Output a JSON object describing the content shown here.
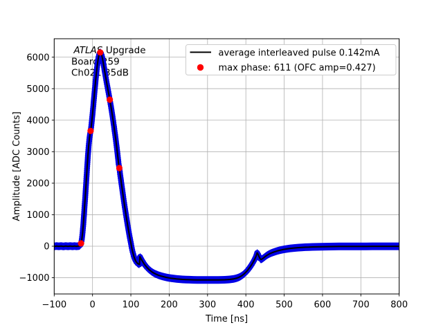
{
  "figure": {
    "background": "#ffffff"
  },
  "annotation": {
    "line1_italic": "ATLAS",
    "line1_rest": "Upgrade",
    "line2": "Board 259",
    "line3": "Ch021 35dB"
  },
  "legend": {
    "entries": [
      {
        "type": "line",
        "color": "#000000",
        "label": "average interleaved pulse 0.142mA"
      },
      {
        "type": "dot",
        "color": "#ff0000",
        "label": "max phase: 611 (OFC amp=0.427)"
      }
    ],
    "border_color": "#cccccc",
    "background": "#ffffff",
    "position": "upper right"
  },
  "axes": {
    "xlabel": "Time [ns]",
    "ylabel": "Amplitude [ADC Counts]",
    "x_tick_labels": [
      "−100",
      "0",
      "100",
      "200",
      "300",
      "400",
      "500",
      "600",
      "700",
      "800"
    ],
    "y_tick_labels": [
      "−1000",
      "0",
      "1000",
      "2000",
      "3000",
      "4000",
      "5000",
      "6000"
    ],
    "grid_color": "#b0b0b0",
    "spine_color": "#000000"
  },
  "chart_data": {
    "type": "line",
    "title": "",
    "xlabel": "Time [ns]",
    "ylabel": "Amplitude [ADC Counts]",
    "xlim": [
      -100,
      800
    ],
    "ylim": [
      -1515,
      6585
    ],
    "x_ticks": [
      -100,
      0,
      100,
      200,
      300,
      400,
      500,
      600,
      700,
      800
    ],
    "y_ticks": [
      -1000,
      0,
      1000,
      2000,
      3000,
      4000,
      5000,
      6000
    ],
    "grid": true,
    "legend_position": "upper right",
    "series": [
      {
        "name": "average interleaved pulse 0.142mA",
        "style": "band+line",
        "band_color": "#0000e6",
        "line_color": "#000000",
        "points": [
          [
            -100,
            -4
          ],
          [
            -94,
            3
          ],
          [
            -88,
            -3
          ],
          [
            -82,
            4
          ],
          [
            -76,
            -4
          ],
          [
            -70,
            3
          ],
          [
            -64,
            -3
          ],
          [
            -58,
            4
          ],
          [
            -52,
            -3
          ],
          [
            -47,
            3
          ],
          [
            -42,
            -3
          ],
          [
            -38,
            2
          ],
          [
            -35,
            4
          ],
          [
            -33,
            15
          ],
          [
            -31,
            55
          ],
          [
            -30,
            90
          ],
          [
            -29,
            140
          ],
          [
            -28,
            210
          ],
          [
            -27,
            310
          ],
          [
            -26,
            420
          ],
          [
            -25,
            555
          ],
          [
            -24,
            700
          ],
          [
            -23,
            860
          ],
          [
            -22,
            1030
          ],
          [
            -21,
            1210
          ],
          [
            -20,
            1390
          ],
          [
            -19,
            1575
          ],
          [
            -18,
            1760
          ],
          [
            -17,
            1950
          ],
          [
            -16,
            2140
          ],
          [
            -15,
            2330
          ],
          [
            -14,
            2520
          ],
          [
            -13,
            2700
          ],
          [
            -12,
            2880
          ],
          [
            -11,
            3040
          ],
          [
            -10,
            3180
          ],
          [
            -9,
            3310
          ],
          [
            -8,
            3420
          ],
          [
            -7,
            3515
          ],
          [
            -6,
            3600
          ],
          [
            -5,
            3660
          ],
          [
            -4,
            3740
          ],
          [
            -3,
            3840
          ],
          [
            -2,
            3950
          ],
          [
            -1,
            4070
          ],
          [
            0,
            4190
          ],
          [
            1,
            4320
          ],
          [
            2,
            4450
          ],
          [
            3,
            4585
          ],
          [
            4,
            4720
          ],
          [
            5,
            4855
          ],
          [
            6,
            4990
          ],
          [
            7,
            5120
          ],
          [
            8,
            5250
          ],
          [
            9,
            5375
          ],
          [
            10,
            5490
          ],
          [
            11,
            5600
          ],
          [
            12,
            5700
          ],
          [
            13,
            5795
          ],
          [
            14,
            5880
          ],
          [
            15,
            5955
          ],
          [
            16,
            6020
          ],
          [
            17,
            6070
          ],
          [
            18,
            6110
          ],
          [
            19,
            6140
          ],
          [
            20,
            6150
          ],
          [
            21,
            6145
          ],
          [
            22,
            6125
          ],
          [
            23,
            6095
          ],
          [
            24,
            6055
          ],
          [
            25,
            6005
          ],
          [
            26,
            5950
          ],
          [
            27,
            5890
          ],
          [
            28,
            5820
          ],
          [
            29,
            5750
          ],
          [
            30,
            5680
          ],
          [
            31,
            5605
          ],
          [
            32,
            5530
          ],
          [
            33,
            5460
          ],
          [
            34,
            5390
          ],
          [
            35,
            5320
          ],
          [
            36,
            5250
          ],
          [
            37,
            5180
          ],
          [
            38,
            5115
          ],
          [
            39,
            5050
          ],
          [
            40,
            4985
          ],
          [
            41,
            4920
          ],
          [
            42,
            4855
          ],
          [
            43,
            4790
          ],
          [
            44,
            4720
          ],
          [
            45,
            4650
          ],
          [
            46,
            4580
          ],
          [
            47,
            4510
          ],
          [
            48,
            4440
          ],
          [
            49,
            4365
          ],
          [
            50,
            4290
          ],
          [
            51,
            4210
          ],
          [
            52,
            4130
          ],
          [
            53,
            4050
          ],
          [
            54,
            3970
          ],
          [
            55,
            3885
          ],
          [
            56,
            3800
          ],
          [
            57,
            3710
          ],
          [
            58,
            3620
          ],
          [
            59,
            3530
          ],
          [
            60,
            3440
          ],
          [
            61,
            3345
          ],
          [
            62,
            3250
          ],
          [
            63,
            3150
          ],
          [
            64,
            3050
          ],
          [
            65,
            2945
          ],
          [
            66,
            2840
          ],
          [
            67,
            2730
          ],
          [
            68,
            2620
          ],
          [
            69,
            2550
          ],
          [
            70,
            2480
          ],
          [
            71,
            2385
          ],
          [
            72,
            2290
          ],
          [
            73,
            2200
          ],
          [
            74,
            2110
          ],
          [
            75,
            2020
          ],
          [
            76,
            1930
          ],
          [
            78,
            1755
          ],
          [
            80,
            1580
          ],
          [
            82,
            1415
          ],
          [
            84,
            1250
          ],
          [
            86,
            1095
          ],
          [
            88,
            940
          ],
          [
            90,
            790
          ],
          [
            92,
            640
          ],
          [
            94,
            500
          ],
          [
            96,
            360
          ],
          [
            98,
            230
          ],
          [
            100,
            100
          ],
          [
            101.5,
            0
          ],
          [
            103,
            -90
          ],
          [
            104.5,
            -170
          ],
          [
            106,
            -240
          ],
          [
            107.5,
            -305
          ],
          [
            109,
            -360
          ],
          [
            110.5,
            -410
          ],
          [
            112,
            -450
          ],
          [
            113.5,
            -483
          ],
          [
            115,
            -510
          ],
          [
            116.5,
            -532
          ],
          [
            118,
            -550
          ],
          [
            119.5,
            -563
          ],
          [
            121,
            -572
          ],
          [
            122.5,
            -578
          ],
          [
            123.5,
            -330
          ],
          [
            125,
            -360
          ],
          [
            127,
            -410
          ],
          [
            129,
            -450
          ],
          [
            131,
            -490
          ],
          [
            133,
            -530
          ],
          [
            135,
            -567
          ],
          [
            137,
            -600
          ],
          [
            139.5,
            -638
          ],
          [
            142,
            -675
          ],
          [
            145,
            -712
          ],
          [
            148,
            -748
          ],
          [
            151.5,
            -782
          ],
          [
            155,
            -815
          ],
          [
            159,
            -845
          ],
          [
            163,
            -872
          ],
          [
            167.5,
            -897
          ],
          [
            172,
            -920
          ],
          [
            177,
            -940
          ],
          [
            182,
            -958
          ],
          [
            187.5,
            -975
          ],
          [
            193,
            -990
          ],
          [
            199,
            -1004
          ],
          [
            205,
            -1016
          ],
          [
            212,
            -1028
          ],
          [
            219,
            -1038
          ],
          [
            227,
            -1046
          ],
          [
            235,
            -1053
          ],
          [
            244,
            -1059
          ],
          [
            253,
            -1063
          ],
          [
            263,
            -1067
          ],
          [
            273,
            -1069
          ],
          [
            284,
            -1071
          ],
          [
            295,
            -1072
          ],
          [
            306,
            -1072
          ],
          [
            318,
            -1072
          ],
          [
            328,
            -1070
          ],
          [
            338,
            -1068
          ],
          [
            345,
            -1064
          ],
          [
            352,
            -1060
          ],
          [
            358,
            -1054
          ],
          [
            363,
            -1046
          ],
          [
            368,
            -1037
          ],
          [
            372,
            -1026
          ],
          [
            376,
            -1012
          ],
          [
            380,
            -996
          ],
          [
            384,
            -976
          ],
          [
            387,
            -954
          ],
          [
            390,
            -929
          ],
          [
            393,
            -902
          ],
          [
            396,
            -870
          ],
          [
            399,
            -836
          ],
          [
            402,
            -798
          ],
          [
            405,
            -756
          ],
          [
            407.5,
            -716
          ],
          [
            410,
            -676
          ],
          [
            412.5,
            -632
          ],
          [
            415,
            -586
          ],
          [
            417,
            -546
          ],
          [
            419,
            -506
          ],
          [
            421,
            -462
          ],
          [
            423,
            -416
          ],
          [
            424.5,
            -376
          ],
          [
            426,
            -336
          ],
          [
            427,
            -306
          ],
          [
            428,
            -266
          ],
          [
            429,
            -228
          ],
          [
            429.5,
            -210
          ],
          [
            430.5,
            -222
          ],
          [
            431.5,
            -248
          ],
          [
            433,
            -290
          ],
          [
            434,
            -318
          ],
          [
            435,
            -345
          ],
          [
            436,
            -370
          ],
          [
            437,
            -392
          ],
          [
            438,
            -408
          ],
          [
            439,
            -418
          ],
          [
            440,
            -417
          ],
          [
            441,
            -412
          ],
          [
            442.5,
            -402
          ],
          [
            444,
            -390
          ],
          [
            446,
            -371
          ],
          [
            448,
            -352
          ],
          [
            450.5,
            -328
          ],
          [
            453,
            -305
          ],
          [
            456,
            -282
          ],
          [
            459,
            -260
          ],
          [
            462.5,
            -238
          ],
          [
            466,
            -218
          ],
          [
            470,
            -198
          ],
          [
            474,
            -180
          ],
          [
            478.5,
            -162
          ],
          [
            483,
            -146
          ],
          [
            488,
            -130
          ],
          [
            493,
            -116
          ],
          [
            498.5,
            -102
          ],
          [
            504,
            -90
          ],
          [
            510,
            -79
          ],
          [
            516,
            -69
          ],
          [
            523,
            -60
          ],
          [
            530,
            -52
          ],
          [
            538,
            -44
          ],
          [
            546,
            -38
          ],
          [
            555,
            -32
          ],
          [
            564,
            -28
          ],
          [
            574,
            -23
          ],
          [
            584,
            -20
          ],
          [
            595,
            -17
          ],
          [
            606,
            -14
          ],
          [
            618,
            -12
          ],
          [
            630,
            -10
          ],
          [
            643,
            -8
          ],
          [
            656,
            -7
          ],
          [
            670,
            -6
          ],
          [
            684,
            -5
          ],
          [
            699,
            -4
          ],
          [
            714,
            -4
          ],
          [
            730,
            -3
          ],
          [
            746,
            -3
          ],
          [
            762,
            -2
          ],
          [
            778,
            -2
          ],
          [
            800,
            -2
          ]
        ]
      },
      {
        "name": "max phase: 611 (OFC amp=0.427)",
        "style": "scatter",
        "color": "#ff0000",
        "marker_radius": 4.6,
        "points": [
          [
            -30,
            90
          ],
          [
            -5,
            3660
          ],
          [
            20,
            6150
          ],
          [
            45,
            4650
          ],
          [
            70,
            2480
          ]
        ]
      }
    ]
  }
}
